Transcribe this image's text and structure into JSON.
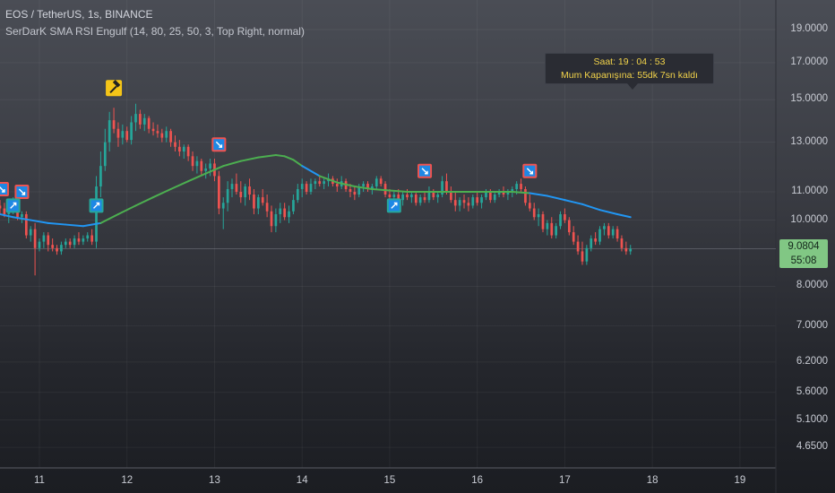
{
  "header": {
    "title": "EOS / TetherUS, 1s, BINANCE",
    "indicator": "SerDarK SMA RSI Engulf (14, 80, 25, 50, 3, Top Right, normal)"
  },
  "info_box": {
    "line1": "Saat: 19 : 04 : 53",
    "line2": "Mum Kapanışına: 55dk 7sn kaldı"
  },
  "price_badge": {
    "price": "9.0804",
    "countdown": "55:08"
  },
  "colors": {
    "up_candle": "#26a69a",
    "down_candle": "#ef5350",
    "sma_below_price": "#4caf50",
    "sma_above_price": "#2196f3",
    "bull_marker": "#26a69a",
    "bear_marker": "#ef5350",
    "hammer_marker": "#f5c518"
  },
  "chart_data": {
    "type": "candlestick",
    "y_scale": "log",
    "ylim": [
      4.5,
      20.0
    ],
    "xlim": [
      10.55,
      19.4
    ],
    "y_ticks": [
      "19.0000",
      "17.0000",
      "15.0000",
      "13.0000",
      "11.0000",
      "10.0000",
      "8.0000",
      "7.0000",
      "6.2000",
      "5.6000",
      "5.1000",
      "4.6500"
    ],
    "x_ticks": [
      "11",
      "12",
      "13",
      "14",
      "15",
      "16",
      "17",
      "18",
      "19"
    ],
    "grid": true,
    "last_price": 9.0804,
    "candles": [
      [
        10.55,
        10.5,
        10.7,
        10.2,
        10.4
      ],
      [
        10.6,
        10.4,
        10.6,
        10.1,
        10.2
      ],
      [
        10.65,
        10.2,
        10.4,
        9.9,
        10.3
      ],
      [
        10.7,
        10.3,
        10.8,
        10.2,
        10.6
      ],
      [
        10.75,
        10.6,
        10.7,
        10.0,
        10.1
      ],
      [
        10.8,
        10.1,
        10.3,
        9.9,
        10.2
      ],
      [
        10.85,
        10.2,
        10.3,
        9.4,
        9.5
      ],
      [
        10.9,
        9.5,
        9.8,
        9.3,
        9.7
      ],
      [
        10.95,
        9.7,
        9.9,
        8.3,
        9.1
      ],
      [
        11.0,
        9.1,
        9.4,
        9.0,
        9.3
      ],
      [
        11.05,
        9.3,
        9.6,
        9.1,
        9.5
      ],
      [
        11.1,
        9.5,
        9.6,
        9.0,
        9.2
      ],
      [
        11.15,
        9.2,
        9.4,
        9.0,
        9.1
      ],
      [
        11.2,
        9.1,
        9.2,
        8.9,
        9.0
      ],
      [
        11.25,
        9.0,
        9.3,
        8.9,
        9.2
      ],
      [
        11.3,
        9.2,
        9.4,
        9.1,
        9.3
      ],
      [
        11.35,
        9.3,
        9.4,
        9.1,
        9.2
      ],
      [
        11.4,
        9.2,
        9.5,
        9.1,
        9.4
      ],
      [
        11.45,
        9.4,
        9.6,
        9.2,
        9.3
      ],
      [
        11.5,
        9.3,
        9.5,
        9.2,
        9.4
      ],
      [
        11.55,
        9.4,
        9.6,
        9.3,
        9.5
      ],
      [
        11.6,
        9.5,
        9.7,
        9.2,
        9.3
      ],
      [
        11.65,
        9.3,
        11.6,
        9.1,
        11.2
      ],
      [
        11.7,
        11.2,
        12.6,
        10.8,
        12.0
      ],
      [
        11.75,
        12.0,
        13.6,
        11.8,
        13.0
      ],
      [
        11.8,
        13.0,
        14.4,
        12.6,
        14.0
      ],
      [
        11.85,
        14.0,
        14.6,
        13.4,
        13.6
      ],
      [
        11.9,
        13.6,
        13.9,
        12.8,
        13.2
      ],
      [
        11.95,
        13.2,
        13.8,
        12.9,
        13.5
      ],
      [
        12.0,
        13.5,
        13.7,
        13.0,
        13.1
      ],
      [
        12.05,
        13.1,
        14.2,
        12.9,
        13.9
      ],
      [
        12.1,
        13.9,
        14.8,
        13.5,
        14.3
      ],
      [
        12.15,
        14.3,
        14.5,
        13.6,
        13.8
      ],
      [
        12.2,
        13.8,
        14.3,
        13.5,
        14.1
      ],
      [
        12.25,
        14.1,
        14.2,
        13.4,
        13.6
      ],
      [
        12.3,
        13.6,
        13.9,
        13.3,
        13.5
      ],
      [
        12.35,
        13.5,
        13.8,
        13.2,
        13.4
      ],
      [
        12.4,
        13.4,
        13.6,
        13.0,
        13.2
      ],
      [
        12.45,
        13.2,
        13.7,
        13.0,
        13.5
      ],
      [
        12.5,
        13.5,
        13.6,
        12.8,
        13.0
      ],
      [
        12.55,
        13.0,
        13.3,
        12.6,
        12.8
      ],
      [
        12.6,
        12.8,
        13.1,
        12.4,
        12.6
      ],
      [
        12.65,
        12.6,
        12.9,
        12.3,
        12.8
      ],
      [
        12.7,
        12.8,
        12.9,
        12.2,
        12.4
      ],
      [
        12.75,
        12.4,
        12.6,
        11.8,
        12.0
      ],
      [
        12.8,
        12.0,
        12.4,
        11.7,
        12.2
      ],
      [
        12.85,
        12.2,
        12.3,
        11.6,
        11.8
      ],
      [
        12.9,
        11.8,
        12.1,
        11.5,
        11.9
      ],
      [
        12.95,
        11.9,
        12.3,
        11.6,
        12.1
      ],
      [
        13.0,
        12.1,
        12.3,
        11.4,
        11.6
      ],
      [
        13.05,
        11.6,
        11.8,
        10.2,
        10.4
      ],
      [
        13.1,
        10.4,
        10.8,
        9.7,
        10.6
      ],
      [
        13.15,
        10.6,
        11.4,
        10.3,
        11.1
      ],
      [
        13.2,
        11.1,
        11.5,
        10.8,
        11.3
      ],
      [
        13.25,
        11.3,
        11.7,
        10.9,
        11.0
      ],
      [
        13.3,
        11.0,
        11.4,
        10.6,
        10.8
      ],
      [
        13.35,
        10.8,
        11.3,
        10.5,
        11.2
      ],
      [
        13.4,
        11.2,
        11.5,
        10.7,
        10.9
      ],
      [
        13.45,
        10.9,
        11.1,
        10.2,
        10.4
      ],
      [
        13.5,
        10.4,
        10.9,
        10.2,
        10.8
      ],
      [
        13.55,
        10.8,
        11.1,
        10.5,
        10.6
      ],
      [
        13.6,
        10.6,
        10.9,
        10.1,
        10.3
      ],
      [
        13.65,
        10.3,
        10.5,
        9.6,
        9.8
      ],
      [
        13.7,
        9.8,
        10.4,
        9.6,
        10.2
      ],
      [
        13.75,
        10.2,
        10.6,
        9.9,
        10.4
      ],
      [
        13.8,
        10.4,
        10.6,
        10.0,
        10.1
      ],
      [
        13.85,
        10.1,
        10.5,
        9.9,
        10.3
      ],
      [
        13.9,
        10.3,
        10.9,
        10.2,
        10.7
      ],
      [
        13.95,
        10.7,
        11.3,
        10.6,
        11.1
      ],
      [
        14.0,
        11.1,
        11.5,
        10.8,
        11.3
      ],
      [
        14.05,
        11.3,
        11.4,
        10.9,
        11.0
      ],
      [
        14.1,
        11.0,
        11.5,
        10.9,
        11.3
      ],
      [
        14.15,
        11.3,
        11.5,
        11.1,
        11.4
      ],
      [
        14.2,
        11.4,
        11.6,
        11.2,
        11.3
      ],
      [
        14.25,
        11.3,
        11.5,
        11.1,
        11.4
      ],
      [
        14.3,
        11.4,
        11.7,
        11.2,
        11.5
      ],
      [
        14.35,
        11.5,
        11.6,
        11.2,
        11.3
      ],
      [
        14.4,
        11.3,
        11.5,
        11.0,
        11.2
      ],
      [
        14.45,
        11.2,
        11.6,
        11.1,
        11.4
      ],
      [
        14.5,
        11.4,
        11.5,
        11.0,
        11.1
      ],
      [
        14.55,
        11.1,
        11.3,
        10.8,
        11.0
      ],
      [
        14.6,
        11.0,
        11.2,
        10.7,
        10.9
      ],
      [
        14.65,
        10.9,
        11.3,
        10.8,
        11.2
      ],
      [
        14.7,
        11.2,
        11.4,
        11.0,
        11.3
      ],
      [
        14.75,
        11.3,
        11.4,
        11.0,
        11.1
      ],
      [
        14.8,
        11.1,
        11.3,
        10.9,
        11.2
      ],
      [
        14.85,
        11.2,
        11.6,
        11.1,
        11.5
      ],
      [
        14.9,
        11.5,
        11.6,
        11.2,
        11.3
      ],
      [
        14.95,
        11.3,
        11.4,
        10.8,
        10.9
      ],
      [
        15.0,
        10.9,
        11.1,
        10.6,
        10.8
      ],
      [
        15.05,
        10.8,
        11.0,
        10.5,
        10.9
      ],
      [
        15.1,
        10.9,
        11.1,
        10.6,
        10.7
      ],
      [
        15.15,
        10.7,
        11.0,
        10.5,
        10.9
      ],
      [
        15.2,
        10.9,
        11.1,
        10.7,
        10.8
      ],
      [
        15.25,
        10.8,
        11.0,
        10.6,
        10.9
      ],
      [
        15.3,
        10.9,
        11.0,
        10.5,
        10.6
      ],
      [
        15.35,
        10.6,
        10.9,
        10.5,
        10.8
      ],
      [
        15.4,
        10.8,
        11.0,
        10.6,
        10.7
      ],
      [
        15.45,
        10.7,
        11.2,
        10.6,
        11.0
      ],
      [
        15.5,
        11.0,
        11.1,
        10.7,
        10.8
      ],
      [
        15.55,
        10.8,
        11.0,
        10.6,
        10.9
      ],
      [
        15.6,
        10.9,
        11.6,
        10.8,
        11.4
      ],
      [
        15.65,
        11.4,
        11.7,
        10.9,
        11.0
      ],
      [
        15.7,
        11.0,
        11.2,
        10.6,
        10.7
      ],
      [
        15.75,
        10.7,
        11.0,
        10.3,
        10.5
      ],
      [
        15.8,
        10.5,
        10.8,
        10.3,
        10.7
      ],
      [
        15.85,
        10.7,
        10.9,
        10.4,
        10.6
      ],
      [
        15.9,
        10.6,
        10.8,
        10.3,
        10.5
      ],
      [
        15.95,
        10.5,
        10.9,
        10.4,
        10.8
      ],
      [
        16.0,
        10.8,
        11.0,
        10.5,
        10.6
      ],
      [
        16.05,
        10.6,
        10.9,
        10.4,
        10.8
      ],
      [
        16.1,
        10.8,
        11.1,
        10.7,
        11.0
      ],
      [
        16.15,
        11.0,
        11.1,
        10.6,
        10.7
      ],
      [
        16.2,
        10.7,
        11.0,
        10.6,
        10.9
      ],
      [
        16.25,
        10.9,
        11.1,
        10.8,
        11.0
      ],
      [
        16.3,
        11.0,
        11.2,
        10.8,
        10.9
      ],
      [
        16.35,
        10.9,
        11.1,
        10.7,
        11.0
      ],
      [
        16.4,
        11.0,
        11.2,
        10.8,
        11.1
      ],
      [
        16.45,
        11.1,
        11.4,
        10.9,
        11.3
      ],
      [
        16.5,
        11.3,
        11.5,
        11.0,
        11.1
      ],
      [
        16.55,
        11.1,
        11.2,
        10.5,
        10.6
      ],
      [
        16.6,
        10.6,
        10.9,
        10.3,
        10.4
      ],
      [
        16.65,
        10.4,
        10.6,
        10.0,
        10.1
      ],
      [
        16.7,
        10.1,
        10.4,
        9.8,
        10.2
      ],
      [
        16.75,
        10.2,
        10.3,
        9.6,
        9.7
      ],
      [
        16.8,
        9.7,
        10.0,
        9.5,
        9.9
      ],
      [
        16.85,
        9.9,
        10.1,
        9.4,
        9.5
      ],
      [
        16.9,
        9.5,
        9.9,
        9.4,
        9.8
      ],
      [
        16.95,
        9.8,
        10.3,
        9.7,
        10.2
      ],
      [
        17.0,
        10.2,
        10.4,
        9.9,
        10.0
      ],
      [
        17.05,
        10.0,
        10.1,
        9.5,
        9.6
      ],
      [
        17.1,
        9.6,
        9.8,
        9.2,
        9.3
      ],
      [
        17.15,
        9.3,
        9.5,
        8.9,
        9.0
      ],
      [
        17.2,
        9.0,
        9.3,
        8.6,
        8.7
      ],
      [
        17.25,
        8.7,
        9.2,
        8.6,
        9.1
      ],
      [
        17.3,
        9.1,
        9.5,
        9.0,
        9.4
      ],
      [
        17.35,
        9.4,
        9.6,
        9.2,
        9.3
      ],
      [
        17.4,
        9.3,
        9.8,
        9.2,
        9.7
      ],
      [
        17.45,
        9.7,
        9.9,
        9.5,
        9.8
      ],
      [
        17.5,
        9.8,
        9.9,
        9.4,
        9.5
      ],
      [
        17.55,
        9.5,
        9.8,
        9.4,
        9.7
      ],
      [
        17.6,
        9.7,
        9.8,
        9.3,
        9.4
      ],
      [
        17.65,
        9.4,
        9.5,
        9.0,
        9.1
      ],
      [
        17.7,
        9.1,
        9.3,
        8.9,
        9.0
      ],
      [
        17.75,
        9.0,
        9.2,
        8.9,
        9.08
      ]
    ],
    "sma": [
      [
        10.55,
        10.2
      ],
      [
        10.7,
        10.1
      ],
      [
        10.9,
        10.0
      ],
      [
        11.1,
        9.9
      ],
      [
        11.3,
        9.85
      ],
      [
        11.5,
        9.8
      ],
      [
        11.7,
        9.9
      ],
      [
        11.9,
        10.2
      ],
      [
        12.1,
        10.5
      ],
      [
        12.3,
        10.8
      ],
      [
        12.5,
        11.1
      ],
      [
        12.7,
        11.4
      ],
      [
        12.9,
        11.7
      ],
      [
        13.1,
        12.0
      ],
      [
        13.3,
        12.2
      ],
      [
        13.5,
        12.35
      ],
      [
        13.7,
        12.45
      ],
      [
        13.8,
        12.4
      ],
      [
        13.9,
        12.25
      ],
      [
        14.0,
        12.0
      ],
      [
        14.2,
        11.6
      ],
      [
        14.4,
        11.35
      ],
      [
        14.6,
        11.2
      ],
      [
        14.8,
        11.1
      ],
      [
        15.0,
        11.05
      ],
      [
        15.2,
        11.0
      ],
      [
        15.4,
        11.0
      ],
      [
        15.6,
        11.0
      ],
      [
        15.8,
        11.0
      ],
      [
        16.0,
        11.0
      ],
      [
        16.2,
        11.0
      ],
      [
        16.4,
        11.0
      ],
      [
        16.6,
        10.95
      ],
      [
        16.8,
        10.85
      ],
      [
        17.0,
        10.7
      ],
      [
        17.2,
        10.55
      ],
      [
        17.4,
        10.35
      ],
      [
        17.6,
        10.2
      ],
      [
        17.75,
        10.1
      ]
    ],
    "markers": [
      {
        "x": 10.57,
        "price": 11.1,
        "kind": "bear"
      },
      {
        "x": 10.8,
        "price": 11.0,
        "kind": "bear"
      },
      {
        "x": 10.7,
        "price": 10.5,
        "kind": "bull"
      },
      {
        "x": 11.65,
        "price": 10.5,
        "kind": "bull"
      },
      {
        "x": 11.85,
        "price": 15.6,
        "kind": "hammer"
      },
      {
        "x": 13.05,
        "price": 12.9,
        "kind": "bear"
      },
      {
        "x": 15.05,
        "price": 10.5,
        "kind": "bull"
      },
      {
        "x": 15.4,
        "price": 11.8,
        "kind": "bear"
      },
      {
        "x": 16.6,
        "price": 11.8,
        "kind": "bear"
      }
    ]
  }
}
